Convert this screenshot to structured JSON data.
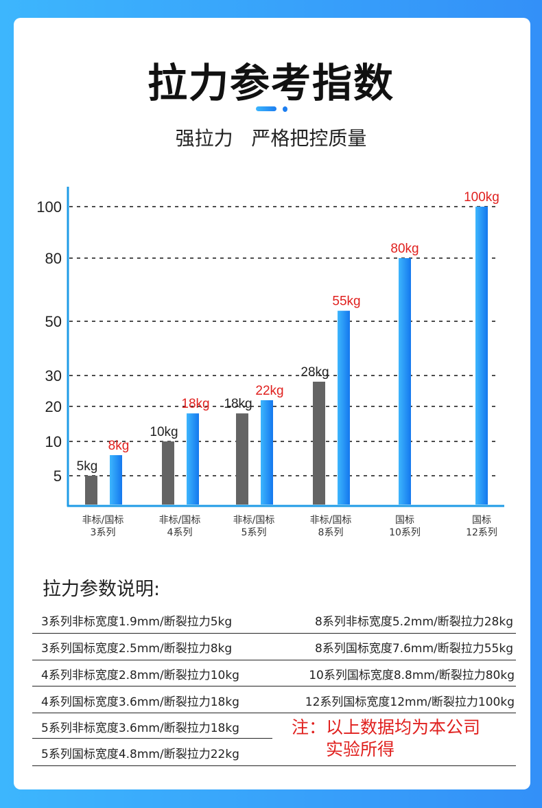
{
  "header": {
    "title": "拉力参考指数",
    "subtitle": "强拉力   严格把控质量"
  },
  "colors": {
    "accent": "#1e9be6",
    "gray_bar": "#646464",
    "blue_bar": "#1a8cf0",
    "red_label": "#e0201e"
  },
  "chart_data": {
    "type": "bar",
    "title": "拉力参考指数",
    "yticks": [
      5,
      10,
      20,
      30,
      50,
      80,
      100
    ],
    "ylim": [
      0,
      100
    ],
    "grid": "dashed horizontal",
    "categories": [
      {
        "line1": "非标/国标",
        "line2": "3系列"
      },
      {
        "line1": "非标/国标",
        "line2": "4系列"
      },
      {
        "line1": "非标/国标",
        "line2": "5系列"
      },
      {
        "line1": "非标/国标",
        "line2": "8系列"
      },
      {
        "line1": "国标",
        "line2": "10系列"
      },
      {
        "line1": "国标",
        "line2": "12系列"
      }
    ],
    "series": [
      {
        "name": "非标",
        "color": "gray",
        "values": [
          5,
          10,
          18,
          28,
          null,
          null
        ],
        "labels": [
          "5kg",
          "10kg",
          "18kg",
          "28kg",
          null,
          null
        ]
      },
      {
        "name": "国标",
        "color": "blue",
        "values": [
          8,
          18,
          22,
          55,
          80,
          100
        ],
        "labels": [
          "8kg",
          "18kg",
          "22kg",
          "55kg",
          "80kg",
          "100kg"
        ]
      }
    ]
  },
  "specs": {
    "title": "拉力参数说明:",
    "left": [
      "3系列非标宽度1.9mm/断裂拉力5kg",
      "3系列国标宽度2.5mm/断裂拉力8kg",
      "4系列非标宽度2.8mm/断裂拉力10kg",
      "4系列国标宽度3.6mm/断裂拉力18kg",
      "5系列非标宽度3.6mm/断裂拉力18kg",
      "5系列国标宽度4.8mm/断裂拉力22kg"
    ],
    "right": [
      "8系列非标宽度5.2mm/断裂拉力28kg",
      "8系列国标宽度7.6mm/断裂拉力55kg",
      "10系列国标宽度8.8mm/断裂拉力80kg",
      "12系列国标宽度12mm/断裂拉力100kg"
    ],
    "note_line1": "注：以上数据均为本公司",
    "note_line2": "实验所得"
  }
}
